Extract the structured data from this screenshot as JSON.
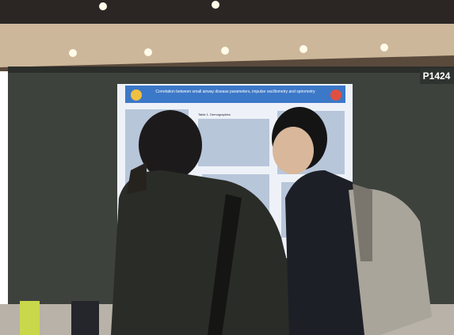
{
  "board_label": "P1424",
  "poster": {
    "title": "Correlation between small airway disease parameters, impulse oscillometry and spirometry",
    "table_caption": "Table 1. Demographics"
  }
}
